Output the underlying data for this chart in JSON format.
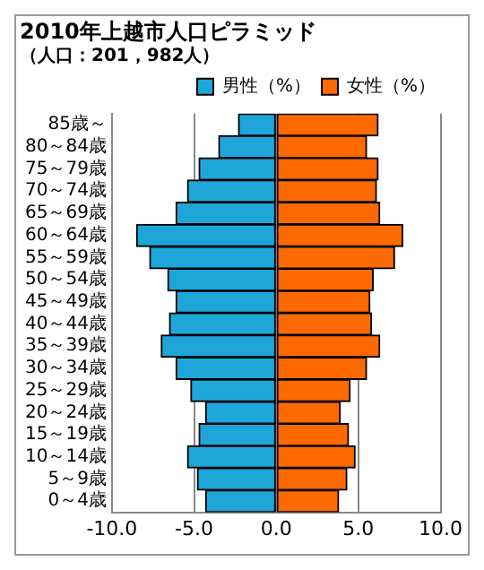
{
  "chart_data": {
    "type": "bar",
    "title": "2010年上越市人口ピラミッド",
    "subtitle": "（人口：201，982人）",
    "orientation": "horizontal",
    "stacked": true,
    "categories": [
      "85歳～",
      "80～84歳",
      "75～79歳",
      "70～74歳",
      "65～69歳",
      "60～64歳",
      "55～59歳",
      "50～54歳",
      "45～49歳",
      "40～44歳",
      "35～39歳",
      "30～34歳",
      "25～29歳",
      "20～24歳",
      "15～19歳",
      "10～14歳",
      "5～9歳",
      "0～4歳"
    ],
    "series": [
      {
        "name": "男性（%）",
        "color": "#1fa6d9",
        "values": [
          -2.3,
          -3.5,
          -4.7,
          -5.4,
          -6.1,
          -8.5,
          -7.7,
          -6.6,
          -6.1,
          -6.5,
          -7.0,
          -6.1,
          -5.2,
          -4.3,
          -4.7,
          -5.4,
          -4.8,
          -4.3
        ]
      },
      {
        "name": "女性（%）",
        "color": "#ff6a00",
        "values": [
          6.2,
          5.5,
          6.2,
          6.1,
          6.3,
          7.7,
          7.2,
          5.9,
          5.7,
          5.8,
          6.3,
          5.5,
          4.5,
          3.9,
          4.4,
          4.8,
          4.3,
          3.8
        ]
      }
    ],
    "xlim": [
      -10,
      10
    ],
    "xticks": [
      {
        "value": -10,
        "label": "-10.0"
      },
      {
        "value": -5,
        "label": "-5.0"
      },
      {
        "value": 0,
        "label": "0.0"
      },
      {
        "value": 5,
        "label": "5.0"
      },
      {
        "value": 10,
        "label": "10.0"
      }
    ],
    "grid": "x",
    "legend": "top right"
  }
}
